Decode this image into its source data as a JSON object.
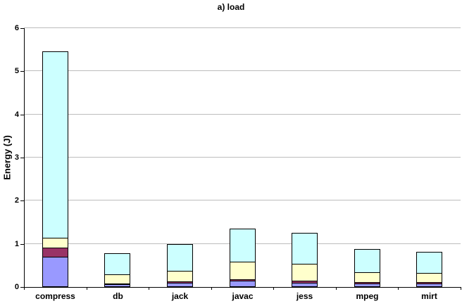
{
  "title": "a) load",
  "y_axis": {
    "label": "Energy (J)",
    "tick_labels": [
      "0",
      "1",
      "2",
      "3",
      "4",
      "5",
      "6"
    ]
  },
  "x_axis": {
    "categories": [
      "compress",
      "db",
      "jack",
      "javac",
      "jess",
      "mpeg",
      "mirt"
    ]
  },
  "colors": {
    "background": "#FFFFFF",
    "gridline": "#BDBDBD",
    "axis": "#000000",
    "segment_border": "#000000"
  },
  "chart_data": {
    "type": "bar",
    "stacked": true,
    "title": "a) load",
    "xlabel": "",
    "ylabel": "Energy (J)",
    "ylim": [
      0,
      6
    ],
    "y_tick_step": 1,
    "grid": true,
    "legend": "none",
    "categories": [
      "compress",
      "db",
      "jack",
      "javac",
      "jess",
      "mpeg",
      "mirt"
    ],
    "series": [
      {
        "name": "bottom-periwinkle",
        "color": "#9999FF",
        "values": [
          0.7,
          0.06,
          0.1,
          0.14,
          0.09,
          0.08,
          0.08
        ]
      },
      {
        "name": "plum",
        "color": "#993366",
        "values": [
          0.22,
          0.02,
          0.03,
          0.04,
          0.06,
          0.03,
          0.03
        ]
      },
      {
        "name": "light-yellow",
        "color": "#FFFFCC",
        "values": [
          0.22,
          0.21,
          0.24,
          0.4,
          0.38,
          0.24,
          0.21
        ]
      },
      {
        "name": "top-light-cyan",
        "color": "#CCFFFF",
        "values": [
          4.32,
          0.49,
          0.62,
          0.78,
          0.72,
          0.53,
          0.5
        ]
      }
    ],
    "totals": [
      5.46,
      0.78,
      0.99,
      1.36,
      1.25,
      0.88,
      0.82
    ]
  }
}
